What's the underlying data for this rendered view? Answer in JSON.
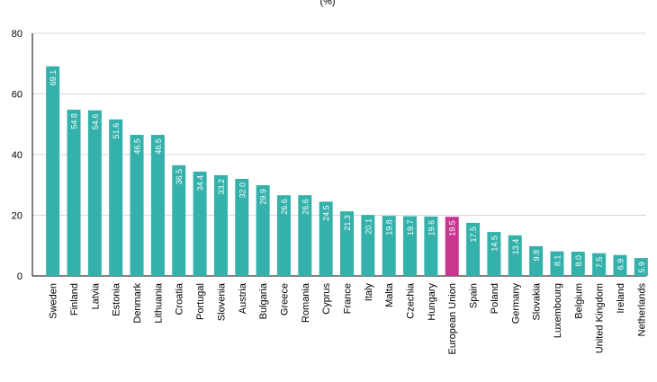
{
  "chart_data": {
    "type": "bar",
    "unit_label": "(%)",
    "categories": [
      "Sweden",
      "Finland",
      "Latvia",
      "Estonia",
      "Denmark",
      "Lithuania",
      "Croatia",
      "Portugal",
      "Slovenia",
      "Austria",
      "Bulgaria",
      "Greece",
      "Romania",
      "Cyprus",
      "France",
      "Italy",
      "Malta",
      "Czechia",
      "Hungary",
      "European Union",
      "Spain",
      "Poland",
      "Germany",
      "Slovakia",
      "Luxembourg",
      "Belgium",
      "United Kingdom",
      "Ireland",
      "Netherlands"
    ],
    "values": [
      69.1,
      54.8,
      54.6,
      51.6,
      46.5,
      46.5,
      36.5,
      34.4,
      33.2,
      32.0,
      29.9,
      26.6,
      26.6,
      24.5,
      21.3,
      20.1,
      19.8,
      19.7,
      19.6,
      19.5,
      17.5,
      14.5,
      13.4,
      9.8,
      8.1,
      8.0,
      7.5,
      6.9,
      5.9
    ],
    "value_labels": [
      "69.1",
      "54.8",
      "54.6",
      "51.6",
      "46.5",
      "46.5",
      "36.5",
      "34.4",
      "33.2",
      "32.0",
      "29.9",
      "26.6",
      "26.6",
      "24.5",
      "21.3",
      "20.1",
      "19.8",
      "19.7",
      "19.6",
      "19.5",
      "17.5",
      "14.5",
      "13.4",
      "9.8",
      "8.1",
      "8.0",
      "7.5",
      "6.9",
      "5.9"
    ],
    "ylim": [
      0,
      80
    ],
    "yticks": [
      0,
      20,
      40,
      60,
      80
    ],
    "grid": true,
    "colors": {
      "default": "#33b1aa",
      "highlight": "#c8378e",
      "highlight_category": "European Union",
      "grid": "#d9d9d9",
      "axis": "#000000"
    }
  }
}
